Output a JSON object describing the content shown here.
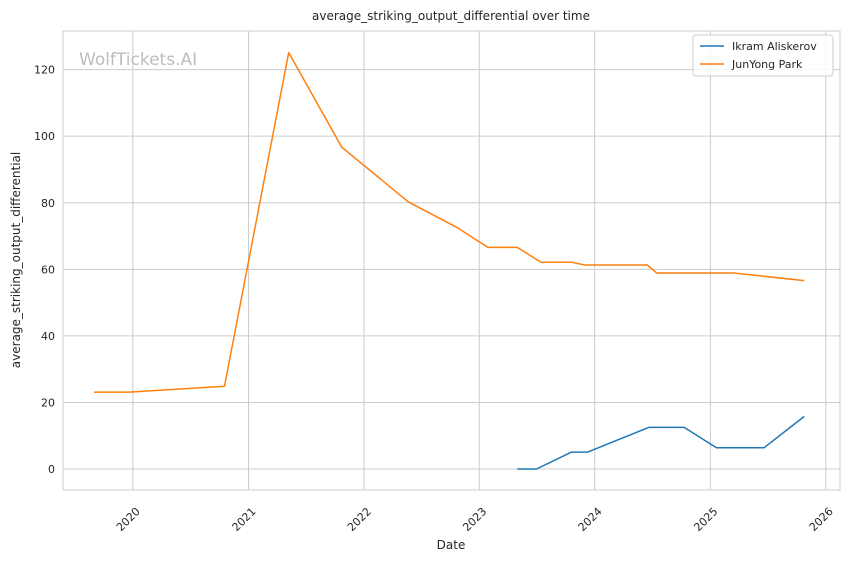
{
  "chart_data": {
    "type": "line",
    "title": "average_striking_output_differential over time",
    "xlabel": "Date",
    "ylabel": "average_striking_output_differential",
    "watermark": "WolfTickets.AI",
    "x_ticks": [
      "2020",
      "2021",
      "2022",
      "2023",
      "2024",
      "2025",
      "2026"
    ],
    "y_ticks": [
      0,
      20,
      40,
      60,
      80,
      100,
      120
    ],
    "xlim": [
      "2019-05-25",
      "2026-02-15"
    ],
    "ylim": [
      -6.3,
      131.6
    ],
    "grid": true,
    "legend_position": "top-right",
    "series": [
      {
        "name": "Ikram Aliskerov",
        "color": "#1f77b4",
        "points": [
          [
            "2023-05-01",
            0.0
          ],
          [
            "2023-07-01",
            0.0
          ],
          [
            "2023-10-20",
            5.1
          ],
          [
            "2023-12-10",
            5.1
          ],
          [
            "2024-06-20",
            12.5
          ],
          [
            "2024-10-10",
            12.5
          ],
          [
            "2025-01-20",
            6.4
          ],
          [
            "2025-06-20",
            6.4
          ],
          [
            "2025-10-25",
            15.8
          ]
        ]
      },
      {
        "name": "JunYong Park",
        "color": "#ff7f0e",
        "points": [
          [
            "2019-08-31",
            23.1
          ],
          [
            "2019-12-20",
            23.1
          ],
          [
            "2020-10-17",
            24.9
          ],
          [
            "2021-05-08",
            125.1
          ],
          [
            "2021-10-23",
            96.7
          ],
          [
            "2022-05-21",
            80.3
          ],
          [
            "2022-10-22",
            72.6
          ],
          [
            "2023-01-28",
            66.6
          ],
          [
            "2023-05-01",
            66.6
          ],
          [
            "2023-07-15",
            62.1
          ],
          [
            "2023-10-21",
            62.1
          ],
          [
            "2023-12-01",
            61.3
          ],
          [
            "2024-06-15",
            61.3
          ],
          [
            "2024-07-15",
            58.9
          ],
          [
            "2025-03-15",
            58.9
          ],
          [
            "2025-10-25",
            56.6
          ]
        ]
      }
    ]
  }
}
